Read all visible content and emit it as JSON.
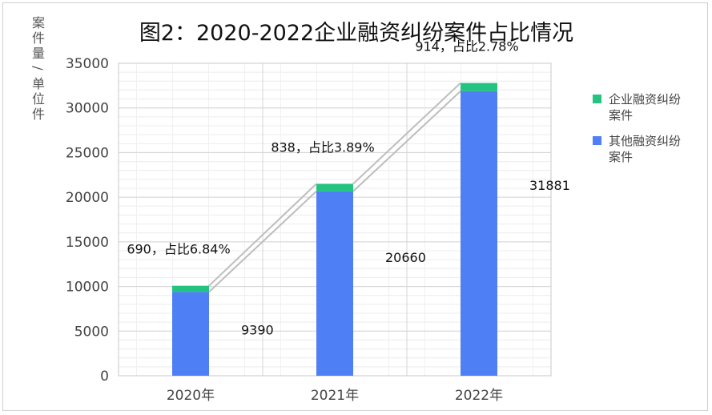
{
  "chart_data": {
    "type": "bar",
    "stacked": true,
    "title": "图2：2020-2022企业融资纠纷案件占比情况",
    "xlabel": "",
    "ylabel": "案件量/单位件",
    "categories": [
      "2020年",
      "2021年",
      "2022年"
    ],
    "ylim": [
      0,
      35000
    ],
    "yticks": [
      "0",
      "5000",
      "10000",
      "15000",
      "20000",
      "25000",
      "30000",
      "35000"
    ],
    "grid": true,
    "legend_position": "right",
    "series": [
      {
        "name": "其他融资纠纷案件",
        "legend_lines": [
          "其他融资纠纷",
          "案件"
        ],
        "color": "#4F7FF5",
        "values": [
          9390,
          20660,
          31881
        ],
        "labels": [
          "9390",
          "20660",
          "31881"
        ]
      },
      {
        "name": "企业融资纠纷案件",
        "legend_lines": [
          "企业融资纠纷",
          "案件"
        ],
        "color": "#22C480",
        "values": [
          690,
          838,
          914
        ],
        "labels": [
          "690，占比6.84%",
          "838，占比3.89%",
          "914，占比2.78%"
        ]
      }
    ],
    "connector_color": "#bdbdbd"
  }
}
